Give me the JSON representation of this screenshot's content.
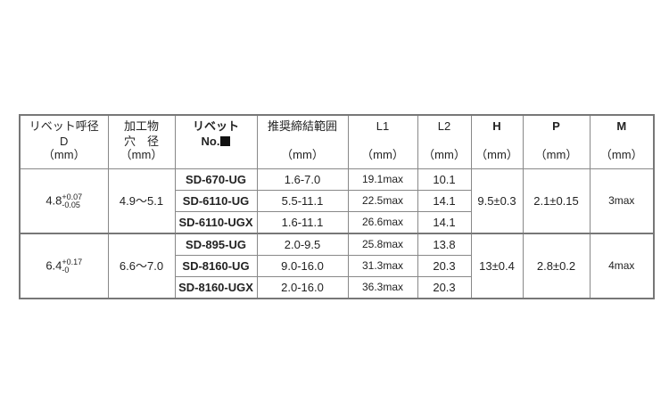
{
  "headers": {
    "d": {
      "line1": "リベット呼径",
      "line2": "D",
      "unit": "（mm）"
    },
    "hole": {
      "line1": "加工物",
      "line2": "穴　径",
      "unit": "（mm）"
    },
    "rivet": {
      "line1": "リベット",
      "line2": "No."
    },
    "grip": {
      "line1": "推奨締結範囲",
      "unit": "（mm）"
    },
    "l1": {
      "label": "L1",
      "unit": "（mm）"
    },
    "l2": {
      "label": "L2",
      "unit": "（mm）"
    },
    "h": {
      "label": "H",
      "unit": "（mm）"
    },
    "p": {
      "label": "P",
      "unit": "（mm）"
    },
    "m": {
      "label": "M",
      "unit": "（mm）"
    }
  },
  "groups": [
    {
      "d_base": "4.8",
      "d_plus": "+0.07",
      "d_minus": "-0.05",
      "hole": "4.9～5.1",
      "h": "9.5±0.3",
      "p": "2.1±0.15",
      "m": "3max",
      "rows": [
        {
          "model": "SD-670-UG",
          "grip": "1.6-7.0",
          "l1": "19.1max",
          "l2": "10.1"
        },
        {
          "model": "SD-6110-UG",
          "grip": "5.5-11.1",
          "l1": "22.5max",
          "l2": "14.1"
        },
        {
          "model": "SD-6110-UGX",
          "grip": "1.6-11.1",
          "l1": "26.6max",
          "l2": "14.1"
        }
      ]
    },
    {
      "d_base": "6.4",
      "d_plus": "+0.17",
      "d_minus": "-0",
      "hole": "6.6～7.0",
      "h": "13±0.4",
      "p": "2.8±0.2",
      "m": "4max",
      "rows": [
        {
          "model": "SD-895-UG",
          "grip": "2.0-9.5",
          "l1": "25.8max",
          "l2": "13.8"
        },
        {
          "model": "SD-8160-UG",
          "grip": "9.0-16.0",
          "l1": "31.3max",
          "l2": "20.3"
        },
        {
          "model": "SD-8160-UGX",
          "grip": "2.0-16.0",
          "l1": "36.3max",
          "l2": "20.3"
        }
      ]
    }
  ]
}
